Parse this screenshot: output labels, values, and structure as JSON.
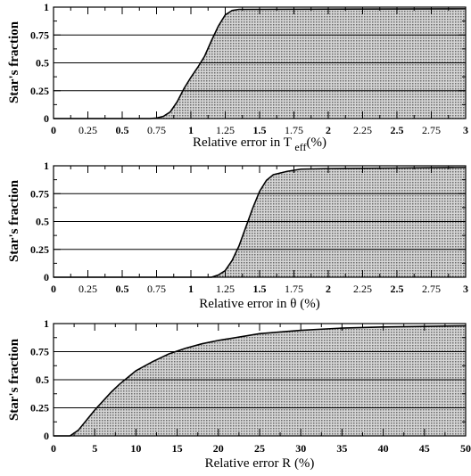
{
  "chart_data": [
    {
      "type": "area",
      "ylabel": "Star's fraction",
      "xlabel_parts": {
        "main": "Relative error in T",
        "sub": "eff",
        "tail": "(%)"
      },
      "xlim": [
        0,
        3
      ],
      "ylim": [
        0,
        1
      ],
      "x_ticks": [
        "0",
        "0.25",
        "0.5",
        "0.75",
        "1",
        "1.25",
        "1.5",
        "1.75",
        "2",
        "2.25",
        "2.5",
        "2.75",
        "3"
      ],
      "y_ticks": [
        "0",
        "0.25",
        "0.5",
        "0.75",
        "1"
      ],
      "gridlines_y": [
        0.25,
        0.5,
        0.75
      ],
      "fill_color": "#bdbdbd",
      "series": [
        {
          "x": [
            0,
            0.7,
            0.75,
            0.8,
            0.85,
            0.9,
            0.95,
            1.0,
            1.05,
            1.1,
            1.15,
            1.2,
            1.25,
            1.3,
            1.35,
            1.4,
            3.0
          ],
          "y": [
            0,
            0,
            0.005,
            0.02,
            0.06,
            0.15,
            0.27,
            0.37,
            0.46,
            0.56,
            0.7,
            0.83,
            0.93,
            0.97,
            0.98,
            0.98,
            0.985
          ]
        }
      ]
    },
    {
      "type": "area",
      "ylabel": "Star's fraction",
      "xlabel": "Relative error in θ (%)",
      "xlim": [
        0,
        3
      ],
      "ylim": [
        0,
        1
      ],
      "x_ticks": [
        "0",
        "0.25",
        "0.5",
        "0.75",
        "1",
        "1.25",
        "1.5",
        "1.75",
        "2",
        "2.25",
        "2.5",
        "2.75",
        "3"
      ],
      "y_ticks": [
        "0",
        "0.25",
        "0.5",
        "0.75",
        "1"
      ],
      "gridlines_y": [
        0.25,
        0.5,
        0.75
      ],
      "fill_color": "#bdbdbd",
      "series": [
        {
          "x": [
            0,
            1.15,
            1.2,
            1.25,
            1.3,
            1.35,
            1.4,
            1.45,
            1.5,
            1.55,
            1.6,
            1.7,
            1.8,
            2.0,
            2.5,
            3.0
          ],
          "y": [
            0,
            0,
            0.02,
            0.06,
            0.15,
            0.28,
            0.45,
            0.62,
            0.77,
            0.87,
            0.92,
            0.95,
            0.97,
            0.975,
            0.98,
            0.985
          ]
        }
      ]
    },
    {
      "type": "area",
      "ylabel": "Star's fraction",
      "xlabel": "Relative error R (%)",
      "xlim": [
        0,
        50
      ],
      "ylim": [
        0,
        1
      ],
      "x_ticks": [
        "0",
        "5",
        "10",
        "15",
        "20",
        "25",
        "30",
        "35",
        "40",
        "45",
        "50"
      ],
      "y_ticks": [
        "0",
        "0.25",
        "0.5",
        "0.75",
        "1"
      ],
      "gridlines_y": [
        0.25,
        0.5,
        0.75
      ],
      "fill_color": "#bdbdbd",
      "series": [
        {
          "x": [
            0,
            2,
            3,
            4,
            5,
            6,
            7,
            8,
            9,
            10,
            12,
            14,
            16,
            18,
            20,
            25,
            30,
            35,
            40,
            45,
            50
          ],
          "y": [
            0,
            0,
            0.05,
            0.14,
            0.23,
            0.31,
            0.39,
            0.46,
            0.52,
            0.58,
            0.66,
            0.73,
            0.78,
            0.82,
            0.85,
            0.91,
            0.94,
            0.96,
            0.97,
            0.975,
            0.98
          ]
        }
      ]
    }
  ]
}
